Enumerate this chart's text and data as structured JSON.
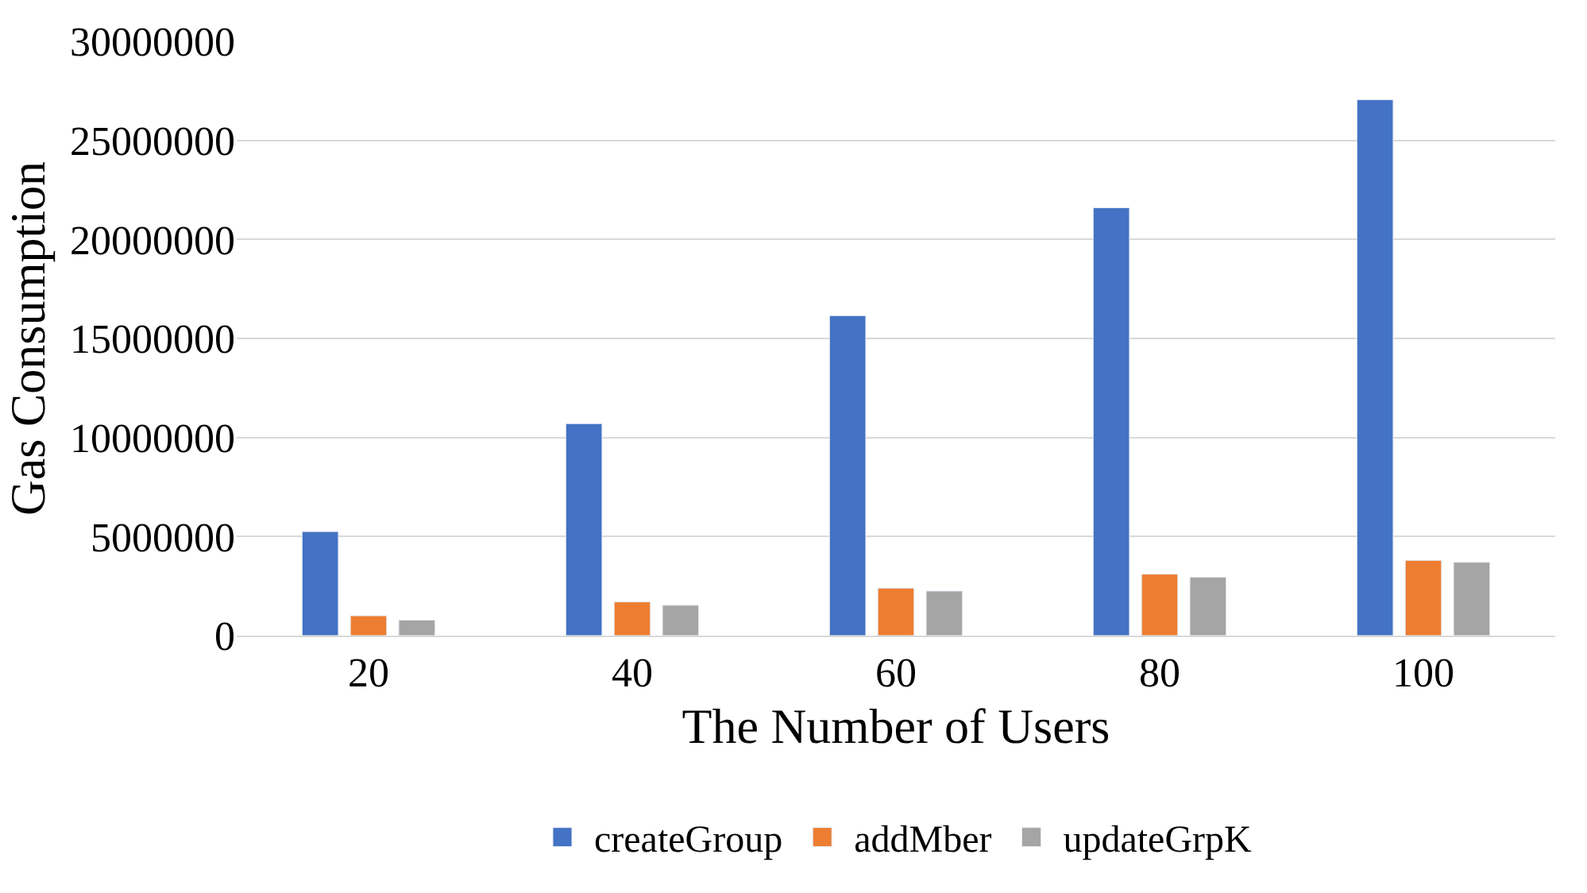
{
  "chart_data": {
    "type": "bar",
    "xlabel": "The Number of Users",
    "ylabel": "Gas Consumption",
    "categories": [
      "20",
      "40",
      "60",
      "80",
      "100"
    ],
    "series": [
      {
        "name": "createGroup",
        "color": "#4472c4",
        "values": [
          5250000,
          10700000,
          16150000,
          21600000,
          27050000
        ]
      },
      {
        "name": "addMber",
        "color": "#ed7d31",
        "values": [
          1000000,
          1700000,
          2400000,
          3100000,
          3800000
        ]
      },
      {
        "name": "updateGrpK",
        "color": "#a5a5a5",
        "values": [
          780000,
          1530000,
          2250000,
          2950000,
          3700000
        ]
      }
    ],
    "ylim": [
      0,
      30000000
    ],
    "yticks": [
      0,
      5000000,
      10000000,
      15000000,
      20000000,
      25000000,
      30000000
    ],
    "grid": "y",
    "legend": "bottom"
  }
}
